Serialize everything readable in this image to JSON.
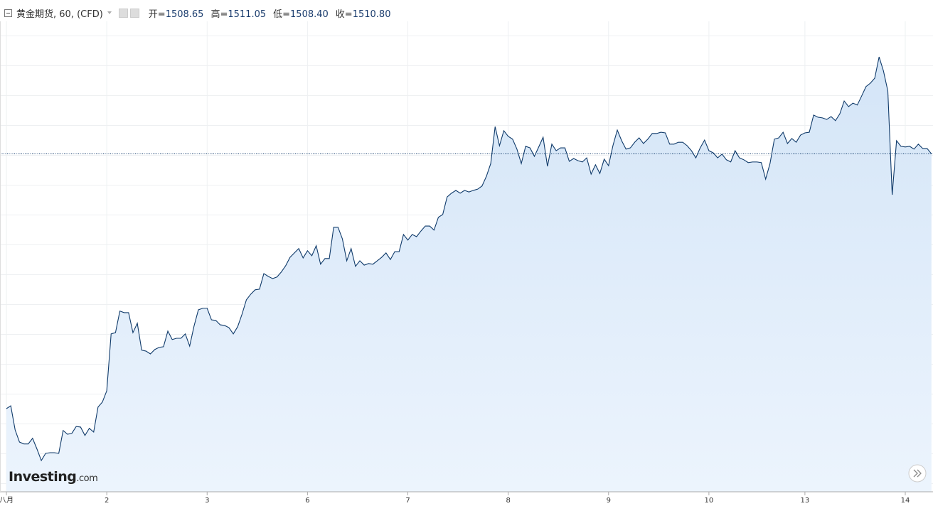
{
  "chart_data": {
    "type": "area",
    "title": "黄金期货, 60, (CFD)",
    "ohlc": [
      {
        "label": "开=",
        "value": "1508.65"
      },
      {
        "label": "高=",
        "value": "1511.05"
      },
      {
        "label": "低=",
        "value": "1508.40"
      },
      {
        "label": "收=",
        "value": "1510.80"
      }
    ],
    "logo": {
      "name": "Investing",
      "suffix": ".com"
    },
    "color": "#0f3a6a",
    "ylim": [
      1402.7,
      1560
    ],
    "last_price_line": true,
    "categories": [
      "八月",
      null,
      null,
      null,
      null,
      null,
      null,
      null,
      null,
      null,
      null,
      null,
      null,
      null,
      null,
      null,
      null,
      null,
      null,
      null,
      null,
      null,
      null,
      "2",
      null,
      null,
      null,
      null,
      null,
      null,
      null,
      null,
      null,
      null,
      null,
      null,
      null,
      null,
      null,
      null,
      null,
      null,
      null,
      null,
      null,
      null,
      "3",
      null,
      null,
      null,
      null,
      null,
      null,
      null,
      null,
      null,
      null,
      null,
      null,
      null,
      null,
      null,
      null,
      null,
      null,
      null,
      null,
      null,
      null,
      "6",
      null,
      null,
      null,
      null,
      null,
      null,
      null,
      null,
      null,
      null,
      null,
      null,
      null,
      null,
      null,
      null,
      null,
      null,
      null,
      null,
      null,
      null,
      "7",
      null,
      null,
      null,
      null,
      null,
      null,
      null,
      null,
      null,
      null,
      null,
      null,
      null,
      null,
      null,
      null,
      null,
      null,
      null,
      null,
      null,
      null,
      "8",
      null,
      null,
      null,
      null,
      null,
      null,
      null,
      null,
      null,
      null,
      null,
      null,
      null,
      null,
      null,
      null,
      null,
      null,
      null,
      null,
      null,
      null,
      "9",
      null,
      null,
      null,
      null,
      null,
      null,
      null,
      null,
      null,
      null,
      null,
      null,
      null,
      null,
      null,
      null,
      null,
      null,
      null,
      null,
      null,
      null,
      "10",
      null,
      null,
      null,
      null,
      null,
      null,
      null,
      null,
      null,
      null,
      null,
      null,
      null,
      null,
      null,
      null,
      null,
      null,
      null,
      null,
      null,
      "13",
      null,
      null,
      null,
      null,
      null,
      null,
      null,
      null,
      null,
      null,
      null,
      null,
      null,
      null,
      null,
      null,
      null,
      null,
      null,
      null,
      null,
      null,
      "14",
      null,
      null,
      null,
      null,
      null,
      null
    ],
    "values": [
      1429.3,
      1430.2,
      1422.5,
      1418.6,
      1418.0,
      1418.0,
      1419.8,
      1416.4,
      1412.7,
      1415.0,
      1415.2,
      1415.2,
      1415.0,
      1422.3,
      1421.1,
      1421.4,
      1423.6,
      1423.4,
      1420.7,
      1423.0,
      1421.8,
      1429.8,
      1431.4,
      1435.0,
      1453.2,
      1453.6,
      1460.5,
      1460.0,
      1460.0,
      1453.6,
      1456.6,
      1448.0,
      1447.7,
      1446.8,
      1448.2,
      1448.9,
      1449.1,
      1454.1,
      1451.4,
      1451.8,
      1451.8,
      1453.2,
      1449.3,
      1455.7,
      1460.9,
      1461.4,
      1461.4,
      1457.7,
      1457.5,
      1456.1,
      1455.9,
      1455.2,
      1453.2,
      1455.5,
      1459.5,
      1464.1,
      1465.9,
      1467.3,
      1467.5,
      1472.5,
      1471.6,
      1470.9,
      1471.4,
      1473.0,
      1475.0,
      1477.7,
      1479.1,
      1480.5,
      1477.5,
      1479.8,
      1478.2,
      1481.4,
      1475.5,
      1477.3,
      1477.3,
      1487.3,
      1487.3,
      1483.6,
      1476.6,
      1480.5,
      1474.8,
      1476.6,
      1475.2,
      1475.7,
      1475.5,
      1476.6,
      1477.7,
      1479.1,
      1477.0,
      1479.5,
      1479.5,
      1485.0,
      1483.2,
      1485.0,
      1484.3,
      1486.1,
      1487.7,
      1487.7,
      1486.4,
      1490.5,
      1491.4,
      1497.0,
      1498.2,
      1499.1,
      1498.2,
      1499.1,
      1498.6,
      1499.1,
      1499.5,
      1500.5,
      1503.6,
      1507.7,
      1519.5,
      1513.4,
      1518.2,
      1516.4,
      1515.5,
      1512.3,
      1507.7,
      1513.2,
      1512.7,
      1510.0,
      1513.0,
      1516.1,
      1506.8,
      1513.9,
      1511.8,
      1512.7,
      1512.7,
      1508.4,
      1509.3,
      1508.6,
      1508.2,
      1509.5,
      1504.3,
      1507.3,
      1504.5,
      1509.1,
      1507.0,
      1513.4,
      1518.4,
      1515.0,
      1512.3,
      1512.7,
      1514.5,
      1515.9,
      1514.1,
      1515.5,
      1517.3,
      1517.3,
      1517.7,
      1517.5,
      1513.9,
      1513.9,
      1514.5,
      1514.5,
      1513.4,
      1511.8,
      1509.5,
      1512.7,
      1515.2,
      1511.8,
      1511.1,
      1509.5,
      1510.7,
      1508.9,
      1508.2,
      1511.8,
      1509.5,
      1508.9,
      1508.0,
      1508.2,
      1508.2,
      1508.0,
      1502.7,
      1507.7,
      1515.5,
      1515.9,
      1517.7,
      1514.1,
      1515.7,
      1514.5,
      1516.8,
      1517.5,
      1517.7,
      1523.2,
      1522.5,
      1522.3,
      1521.8,
      1522.7,
      1521.4,
      1523.6,
      1527.7,
      1525.9,
      1527.0,
      1526.4,
      1529.3,
      1532.3,
      1533.4,
      1535.0,
      1541.8,
      1537.3,
      1530.9,
      1497.7,
      1515.0,
      1513.2,
      1513.0,
      1513.2,
      1512.3,
      1513.9,
      1512.5,
      1512.5,
      1510.8
    ]
  }
}
